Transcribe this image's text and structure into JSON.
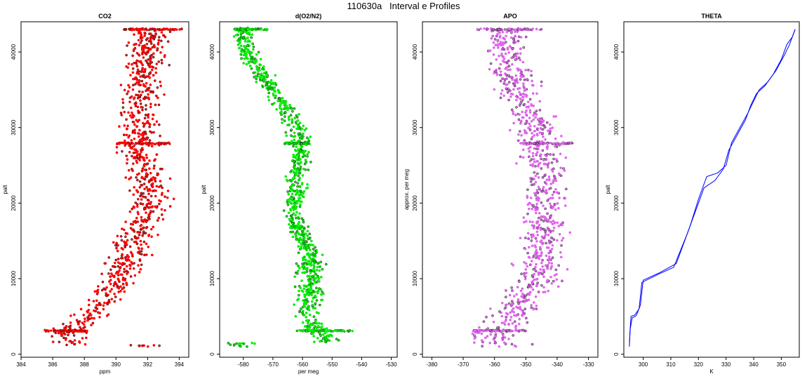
{
  "figure_title": "110630a   Interval e Profiles",
  "chart_data": [
    {
      "type": "scatter",
      "title": "CO2",
      "xlabel": "ppm",
      "ylabel": "palt",
      "xlim": [
        384,
        394.6
      ],
      "ylim": [
        -400,
        44000
      ],
      "xticks": [
        "384",
        "386",
        "388",
        "390",
        "392",
        "394"
      ],
      "yticks": [
        "0",
        "10000",
        "20000",
        "30000",
        "40000"
      ],
      "color": "#ff0000",
      "profile": [
        {
          "alt": 1200,
          "x": 387.0
        },
        {
          "alt": 2500,
          "x": 386.8
        },
        {
          "alt": 4500,
          "x": 388.0
        },
        {
          "alt": 6000,
          "x": 388.8
        },
        {
          "alt": 8000,
          "x": 389.4
        },
        {
          "alt": 10000,
          "x": 390.2
        },
        {
          "alt": 12000,
          "x": 390.6
        },
        {
          "alt": 15000,
          "x": 391.0
        },
        {
          "alt": 18000,
          "x": 391.8
        },
        {
          "alt": 21000,
          "x": 392.2
        },
        {
          "alt": 24000,
          "x": 391.8
        },
        {
          "alt": 28000,
          "x": 391.4
        },
        {
          "alt": 32000,
          "x": 391.6
        },
        {
          "alt": 36000,
          "x": 391.8
        },
        {
          "alt": 40000,
          "x": 392.0
        },
        {
          "alt": 43000,
          "x": 392.0
        }
      ],
      "spread_low": 0.8,
      "spread_high": 0.9,
      "bands": [
        {
          "alt": 3100,
          "x_from": 385.5,
          "x_to": 388.2
        },
        {
          "alt": 27900,
          "x_from": 390.0,
          "x_to": 393.4
        },
        {
          "alt": 43000,
          "x_from": 390.5,
          "x_to": 394.2
        }
      ]
    },
    {
      "type": "scatter",
      "title": "d(O2/N2)",
      "xlabel": "per meg",
      "ylabel": "palt",
      "xlim": [
        -588,
        -528
      ],
      "ylim": [
        -400,
        44000
      ],
      "xticks": [
        "-580",
        "-570",
        "-560",
        "-550",
        "-540",
        "-530"
      ],
      "yticks": [
        "0",
        "10000",
        "20000",
        "30000",
        "40000"
      ],
      "color": "#00ee00",
      "profile": [
        {
          "alt": 1500,
          "x": -552
        },
        {
          "alt": 3000,
          "x": -555
        },
        {
          "alt": 5000,
          "x": -558
        },
        {
          "alt": 8000,
          "x": -558
        },
        {
          "alt": 11000,
          "x": -557
        },
        {
          "alt": 14000,
          "x": -558
        },
        {
          "alt": 17000,
          "x": -562
        },
        {
          "alt": 20000,
          "x": -563
        },
        {
          "alt": 23000,
          "x": -562
        },
        {
          "alt": 26000,
          "x": -561
        },
        {
          "alt": 28000,
          "x": -560
        },
        {
          "alt": 31000,
          "x": -564
        },
        {
          "alt": 34000,
          "x": -568
        },
        {
          "alt": 37000,
          "x": -574
        },
        {
          "alt": 40000,
          "x": -579
        },
        {
          "alt": 43000,
          "x": -580
        }
      ],
      "spread_low": 3.5,
      "spread_high": 2.5,
      "bands": [
        {
          "alt": 3100,
          "x_from": -562,
          "x_to": -543
        },
        {
          "alt": 27900,
          "x_from": -566,
          "x_to": -558
        },
        {
          "alt": 43000,
          "x_from": -583,
          "x_to": -571
        }
      ]
    },
    {
      "type": "scatter",
      "title": "APO",
      "xlabel": "",
      "ylabel": "approx. per meg",
      "xlim": [
        -383,
        -327
      ],
      "ylim": [
        -400,
        44000
      ],
      "xticks": [
        "-380",
        "-370",
        "-360",
        "-350",
        "-340",
        "-330"
      ],
      "yticks": [
        "0",
        "10000",
        "20000",
        "30000",
        "40000"
      ],
      "color": "#e066ee",
      "profile": [
        {
          "alt": 1500,
          "x": -362
        },
        {
          "alt": 3000,
          "x": -360
        },
        {
          "alt": 5000,
          "x": -355
        },
        {
          "alt": 8000,
          "x": -350
        },
        {
          "alt": 11000,
          "x": -345
        },
        {
          "alt": 14000,
          "x": -345
        },
        {
          "alt": 18000,
          "x": -343
        },
        {
          "alt": 22000,
          "x": -344
        },
        {
          "alt": 26000,
          "x": -344
        },
        {
          "alt": 30000,
          "x": -347
        },
        {
          "alt": 34000,
          "x": -352
        },
        {
          "alt": 38000,
          "x": -355
        },
        {
          "alt": 41000,
          "x": -356
        },
        {
          "alt": 43000,
          "x": -356
        }
      ],
      "spread_low": 6,
      "spread_high": 5,
      "bands": [
        {
          "alt": 3100,
          "x_from": -367,
          "x_to": -350
        },
        {
          "alt": 27900,
          "x_from": -352,
          "x_to": -335
        },
        {
          "alt": 43000,
          "x_from": -366,
          "x_to": -345
        }
      ]
    },
    {
      "type": "line",
      "title": "THETA",
      "xlabel": "K",
      "ylabel": "palt",
      "xlim": [
        293,
        356.5
      ],
      "ylim": [
        -400,
        44000
      ],
      "xticks": [
        "300",
        "310",
        "320",
        "330",
        "340",
        "350"
      ],
      "yticks": [
        "0",
        "10000",
        "20000",
        "30000",
        "40000"
      ],
      "color": "#0000ff",
      "series": [
        {
          "x": [
            295,
            295.2,
            295.6,
            297,
            298.5,
            299.5,
            305,
            311,
            316,
            319,
            322,
            326,
            329,
            331,
            334,
            337,
            339,
            341,
            344,
            347,
            350,
            352,
            354,
            355
          ],
          "y": [
            1000,
            3000,
            5000,
            5200,
            6000,
            9500,
            10500,
            11500,
            16000,
            19000,
            22000,
            23000,
            24500,
            27000,
            29000,
            31000,
            33000,
            34500,
            35500,
            37000,
            39000,
            41000,
            42000,
            43000
          ]
        },
        {
          "x": [
            295,
            295.3,
            296,
            297.5,
            299,
            300,
            306,
            312,
            317,
            320,
            323,
            327,
            330,
            332,
            335,
            338,
            340,
            342,
            345,
            348,
            351,
            353,
            354.5,
            355
          ],
          "y": [
            1200,
            3300,
            4800,
            5100,
            6500,
            9800,
            10800,
            12000,
            17000,
            20500,
            23500,
            24000,
            25000,
            28000,
            30000,
            32000,
            33500,
            35000,
            36000,
            37500,
            39500,
            41000,
            42500,
            43000
          ]
        }
      ]
    }
  ]
}
